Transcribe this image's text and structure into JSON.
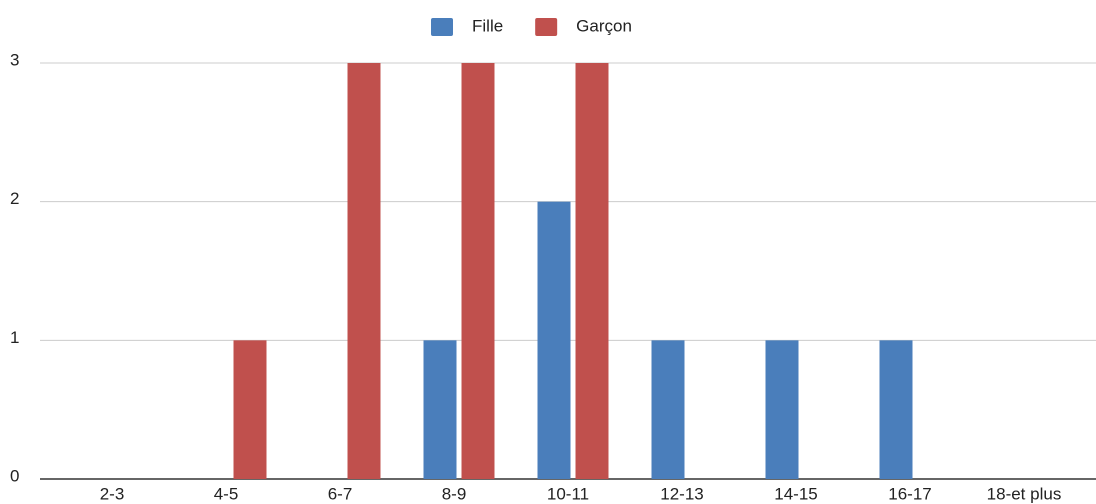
{
  "chart_data": {
    "type": "bar",
    "categories": [
      "2-3",
      "4-5",
      "6-7",
      "8-9",
      "10-11",
      "12-13",
      "14-15",
      "16-17",
      "18-et plus"
    ],
    "series": [
      {
        "name": "Fille",
        "color": "#4a7ebb",
        "values": [
          0,
          0,
          0,
          1,
          2,
          1,
          1,
          1,
          0
        ]
      },
      {
        "name": "Garçon",
        "color": "#c0504d",
        "values": [
          0,
          1,
          3,
          3,
          3,
          0,
          0,
          0,
          0
        ]
      }
    ],
    "ylim": [
      0,
      3
    ],
    "yticks": [
      0,
      1,
      2,
      3
    ],
    "grid": true,
    "legend": "top"
  }
}
